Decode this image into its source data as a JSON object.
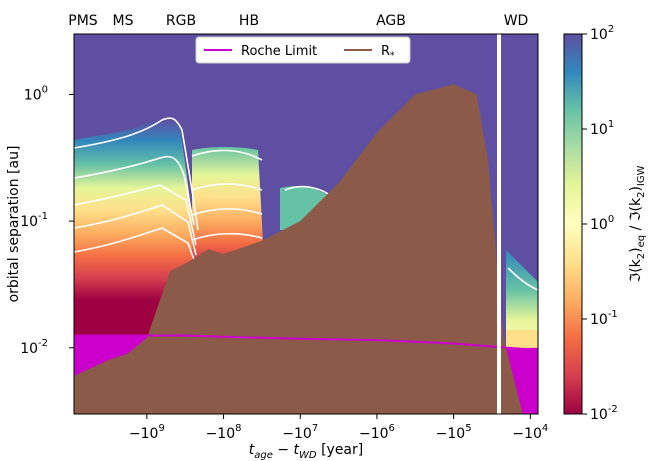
{
  "chart_data": {
    "type": "heatmap",
    "xlabel": "t_age − t_WD [year]",
    "ylabel": "orbital separation [au]",
    "colorbar_label": "ℑ(k2)eq / ℑ(k2)IGW",
    "yscale": "log",
    "ylim": [
      0.003,
      3.0
    ],
    "x_ticks": [
      "−10^9",
      "−10^8",
      "−10^7",
      "−10^6",
      "−10^5",
      "−10^4"
    ],
    "y_ticks": [
      "10^-2",
      "10^-1",
      "10^0"
    ],
    "colorbar_ticks": [
      "10^-2",
      "10^-1",
      "10^0",
      "10^1",
      "10^2"
    ],
    "colorbar_range": [
      0.01,
      100
    ],
    "colormap": "Spectral",
    "phases": [
      "PMS",
      "MS",
      "RGB",
      "HB",
      "AGB",
      "WD"
    ],
    "legend": [
      {
        "name": "Roche Limit",
        "color": "#cc00cc"
      },
      {
        "name": "R*",
        "color": "#8b5a48"
      }
    ],
    "series": [
      {
        "name": "Roche Limit",
        "x_log_abs_age": [
          9.95,
          9.5,
          9.0,
          8.5,
          8.0,
          7.0,
          6.0,
          5.0,
          4.1,
          3.9
        ],
        "values": [
          0.0125,
          0.0125,
          0.0125,
          0.0125,
          0.0122,
          0.0118,
          0.0115,
          0.0108,
          0.0098,
          0.0098
        ]
      },
      {
        "name": "R*",
        "x_log_abs_age": [
          9.95,
          9.5,
          9.25,
          9.0,
          8.7,
          8.4,
          8.2,
          8.0,
          7.5,
          7.0,
          6.5,
          6.0,
          5.5,
          5.0,
          4.7,
          4.55,
          4.35,
          4.1
        ],
        "values": [
          0.006,
          0.008,
          0.009,
          0.012,
          0.04,
          0.05,
          0.06,
          0.055,
          0.07,
          0.1,
          0.2,
          0.5,
          1.0,
          1.2,
          1.0,
          0.3,
          0.012,
          0.003
        ]
      }
    ]
  }
}
